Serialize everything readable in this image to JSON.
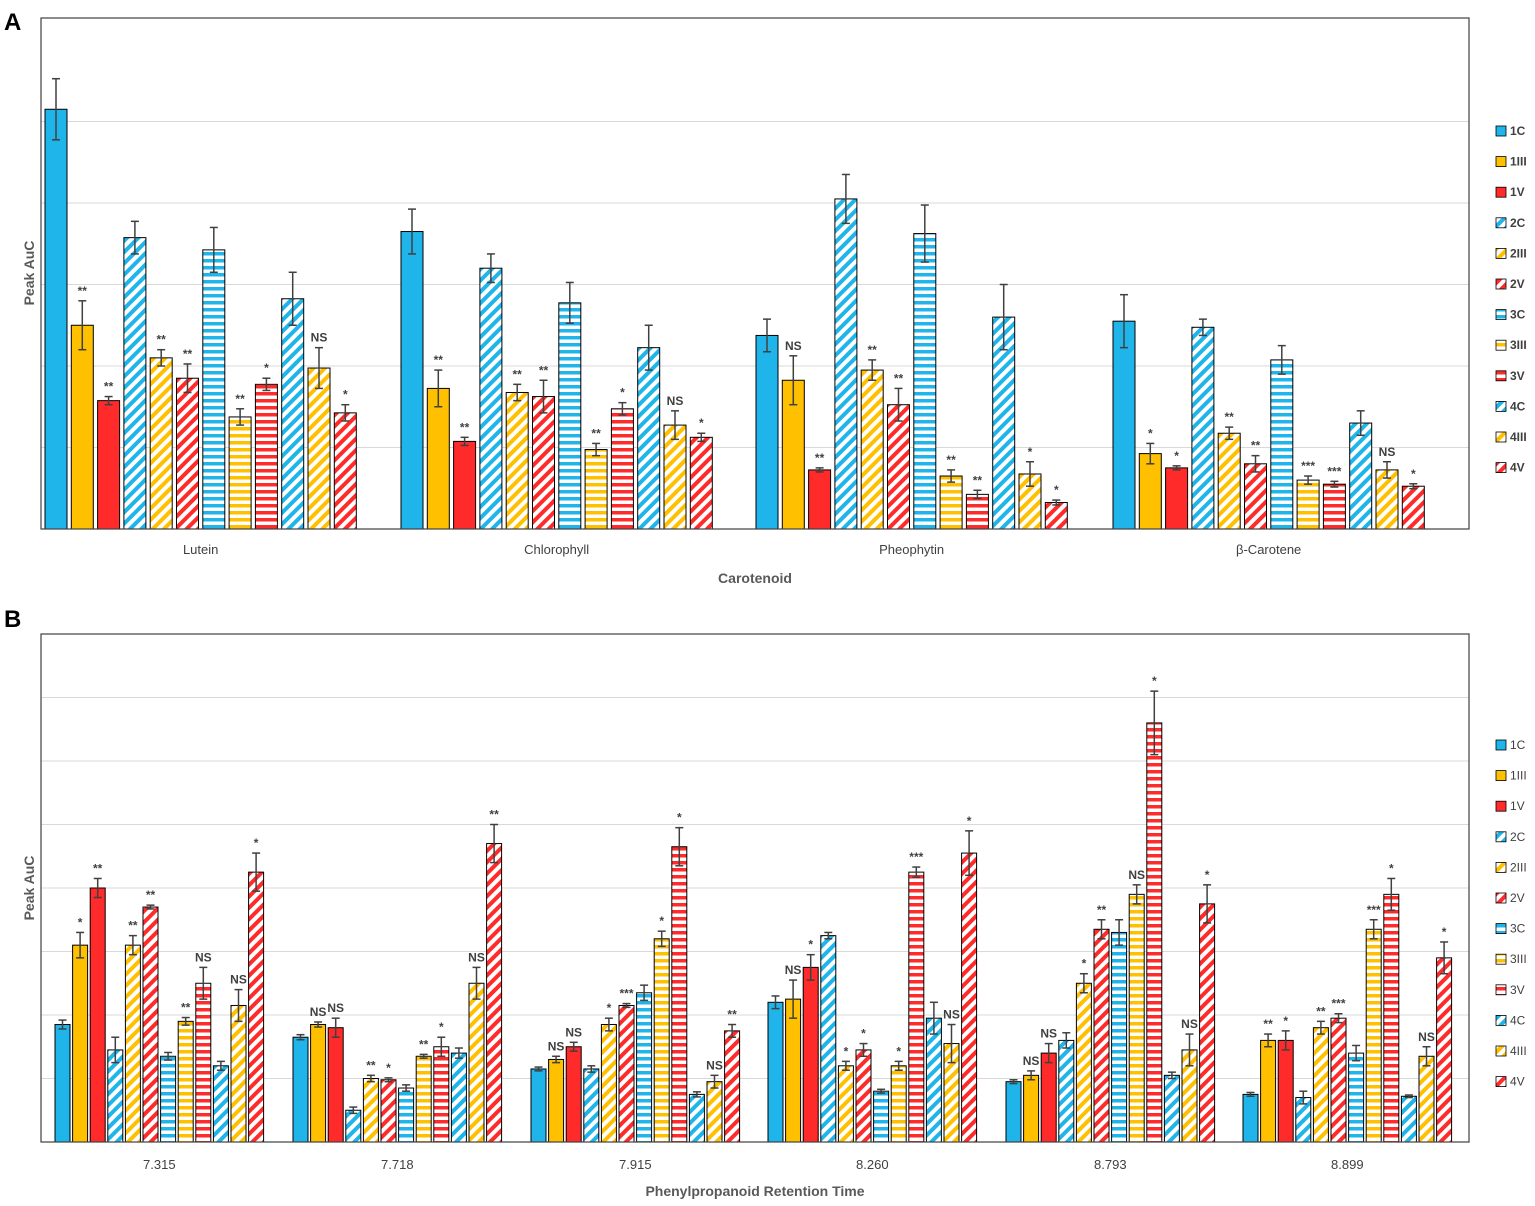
{
  "colors": {
    "blue": "#1fb5ea",
    "orange": "#ffc000",
    "red": "#ff2b2b",
    "grid": "#d9d9d9",
    "frame": "#404040"
  },
  "series_style": [
    {
      "name": "1C",
      "color": "blue",
      "pattern": "solid"
    },
    {
      "name": "1III",
      "color": "orange",
      "pattern": "solid"
    },
    {
      "name": "1V",
      "color": "red",
      "pattern": "solid"
    },
    {
      "name": "2C",
      "color": "blue",
      "pattern": "diag"
    },
    {
      "name": "2III",
      "color": "orange",
      "pattern": "diag"
    },
    {
      "name": "2V",
      "color": "red",
      "pattern": "diag"
    },
    {
      "name": "3C",
      "color": "blue",
      "pattern": "horiz"
    },
    {
      "name": "3III",
      "color": "orange",
      "pattern": "horiz"
    },
    {
      "name": "3V",
      "color": "red",
      "pattern": "horiz"
    },
    {
      "name": "4C",
      "color": "blue",
      "pattern": "diag"
    },
    {
      "name": "4III",
      "color": "orange",
      "pattern": "diag"
    },
    {
      "name": "4V",
      "color": "red",
      "pattern": "diag"
    }
  ],
  "chart_data": [
    {
      "panel": "A",
      "type": "bar",
      "xlabel": "Carotenoid",
      "ylabel": "Peak AuC",
      "ylim": [
        0,
        12
      ],
      "gridlines": [
        2,
        4,
        6,
        8,
        10
      ],
      "categories": [
        "Lutein",
        "Chlorophyll",
        "Pheophytin",
        "β-Carotene"
      ],
      "legend": [
        "1C",
        "1III",
        "1V",
        "2C",
        "2III",
        "2V",
        "3C",
        "3III",
        "3V",
        "4C",
        "4III",
        "4V"
      ],
      "series": [
        {
          "name": "1C",
          "values": [
            10.3,
            7.3,
            4.75,
            5.1
          ],
          "errors": [
            0.75,
            0.55,
            0.4,
            0.65
          ],
          "sig": [
            "",
            "",
            "",
            ""
          ]
        },
        {
          "name": "1III",
          "values": [
            5.0,
            3.45,
            3.65,
            1.85
          ],
          "errors": [
            0.6,
            0.45,
            0.6,
            0.25
          ],
          "sig": [
            "**",
            "**",
            "NS",
            "*"
          ]
        },
        {
          "name": "1V",
          "values": [
            3.15,
            2.15,
            1.45,
            1.5
          ],
          "errors": [
            0.1,
            0.1,
            0.05,
            0.05
          ],
          "sig": [
            "**",
            "**",
            "**",
            "*"
          ]
        },
        {
          "name": "2C",
          "values": [
            7.15,
            6.4,
            8.1,
            4.95
          ],
          "errors": [
            0.4,
            0.35,
            0.6,
            0.2
          ],
          "sig": [
            "",
            "",
            "",
            ""
          ]
        },
        {
          "name": "2III",
          "values": [
            4.2,
            3.35,
            3.9,
            2.35
          ],
          "errors": [
            0.2,
            0.2,
            0.25,
            0.15
          ],
          "sig": [
            "**",
            "**",
            "**",
            "**"
          ]
        },
        {
          "name": "2V",
          "values": [
            3.7,
            3.25,
            3.05,
            1.6
          ],
          "errors": [
            0.35,
            0.4,
            0.4,
            0.2
          ],
          "sig": [
            "**",
            "**",
            "**",
            "**"
          ]
        },
        {
          "name": "3C",
          "values": [
            6.85,
            5.55,
            7.25,
            4.15
          ],
          "errors": [
            0.55,
            0.5,
            0.7,
            0.35
          ],
          "sig": [
            "",
            "",
            "",
            ""
          ]
        },
        {
          "name": "3III",
          "values": [
            2.75,
            1.95,
            1.3,
            1.2
          ],
          "errors": [
            0.2,
            0.15,
            0.15,
            0.1
          ],
          "sig": [
            "**",
            "**",
            "**",
            "***"
          ]
        },
        {
          "name": "3V",
          "values": [
            3.55,
            2.95,
            0.85,
            1.1
          ],
          "errors": [
            0.15,
            0.15,
            0.1,
            0.07
          ],
          "sig": [
            "*",
            "*",
            "**",
            "***"
          ]
        },
        {
          "name": "4C",
          "values": [
            5.65,
            4.45,
            5.2,
            2.6
          ],
          "errors": [
            0.65,
            0.55,
            0.8,
            0.3
          ],
          "sig": [
            "",
            "",
            "",
            ""
          ]
        },
        {
          "name": "4III",
          "values": [
            3.95,
            2.55,
            1.35,
            1.45
          ],
          "errors": [
            0.5,
            0.35,
            0.3,
            0.2
          ],
          "sig": [
            "NS",
            "NS",
            "*",
            "NS"
          ]
        },
        {
          "name": "4V",
          "values": [
            2.85,
            2.25,
            0.65,
            1.05
          ],
          "errors": [
            0.2,
            0.1,
            0.06,
            0.06
          ],
          "sig": [
            "*",
            "*",
            "*",
            "*"
          ]
        }
      ]
    },
    {
      "panel": "B",
      "type": "bar",
      "xlabel": "Phenylpropanoid Retention Time",
      "ylabel": "Peak AuC",
      "ylim": [
        0,
        8
      ],
      "gridlines": [
        1,
        2,
        3,
        4,
        5,
        6,
        7
      ],
      "categories": [
        "7.315",
        "7.718",
        "7.915",
        "8.260",
        "8.793",
        "8.899"
      ],
      "legend": [
        "1C",
        "1III",
        "1V",
        "2C",
        "2III",
        "2V",
        "3C",
        "3III",
        "3V",
        "4C",
        "4III",
        "4V"
      ],
      "series": [
        {
          "name": "1C",
          "values": [
            1.85,
            1.65,
            1.15,
            2.2,
            0.95,
            0.75
          ],
          "errors": [
            0.07,
            0.04,
            0.03,
            0.1,
            0.03,
            0.03
          ],
          "sig": [
            "",
            "",
            "",
            "",
            "",
            ""
          ]
        },
        {
          "name": "1III",
          "values": [
            3.1,
            1.85,
            1.3,
            2.25,
            1.05,
            1.6
          ],
          "errors": [
            0.2,
            0.04,
            0.05,
            0.3,
            0.07,
            0.1
          ],
          "sig": [
            "*",
            "NS",
            "NS",
            "NS",
            "NS",
            "**"
          ]
        },
        {
          "name": "1V",
          "values": [
            4.0,
            1.8,
            1.5,
            2.75,
            1.4,
            1.6
          ],
          "errors": [
            0.15,
            0.15,
            0.07,
            0.2,
            0.15,
            0.15
          ],
          "sig": [
            "**",
            "NS",
            "NS",
            "*",
            "NS",
            "*"
          ]
        },
        {
          "name": "2C",
          "values": [
            1.45,
            0.5,
            1.15,
            3.25,
            1.6,
            0.7
          ],
          "errors": [
            0.2,
            0.05,
            0.05,
            0.05,
            0.12,
            0.1
          ],
          "sig": [
            "",
            "",
            "",
            "",
            "",
            ""
          ]
        },
        {
          "name": "2III",
          "values": [
            3.1,
            1.0,
            1.85,
            1.2,
            2.5,
            1.8
          ],
          "errors": [
            0.15,
            0.05,
            0.1,
            0.07,
            0.15,
            0.1
          ],
          "sig": [
            "**",
            "**",
            "*",
            "*",
            "*",
            "**"
          ]
        },
        {
          "name": "2V",
          "values": [
            3.7,
            0.98,
            2.15,
            1.45,
            3.35,
            1.95
          ],
          "errors": [
            0.03,
            0.03,
            0.03,
            0.1,
            0.15,
            0.07
          ],
          "sig": [
            "**",
            "*",
            "***",
            "*",
            "**",
            "***"
          ]
        },
        {
          "name": "3C",
          "values": [
            1.35,
            0.85,
            2.35,
            0.8,
            3.3,
            1.4
          ],
          "errors": [
            0.06,
            0.05,
            0.12,
            0.03,
            0.2,
            0.12
          ],
          "sig": [
            "",
            "",
            "",
            "",
            "",
            ""
          ]
        },
        {
          "name": "3III",
          "values": [
            1.9,
            1.35,
            3.2,
            1.2,
            3.9,
            3.35
          ],
          "errors": [
            0.06,
            0.03,
            0.12,
            0.07,
            0.15,
            0.15
          ],
          "sig": [
            "**",
            "**",
            "*",
            "*",
            "NS",
            "***"
          ]
        },
        {
          "name": "3V",
          "values": [
            2.5,
            1.5,
            4.65,
            4.25,
            6.6,
            3.9
          ],
          "errors": [
            0.25,
            0.15,
            0.3,
            0.08,
            0.5,
            0.25
          ],
          "sig": [
            "NS",
            "*",
            "*",
            "***",
            "*",
            "*"
          ]
        },
        {
          "name": "4C",
          "values": [
            1.2,
            1.4,
            0.75,
            1.95,
            1.05,
            0.72
          ],
          "errors": [
            0.07,
            0.08,
            0.04,
            0.25,
            0.05,
            0.02
          ],
          "sig": [
            "",
            "",
            "",
            "",
            "",
            ""
          ]
        },
        {
          "name": "4III",
          "values": [
            2.15,
            2.5,
            0.95,
            1.55,
            1.45,
            1.35
          ],
          "errors": [
            0.25,
            0.25,
            0.1,
            0.3,
            0.25,
            0.15
          ],
          "sig": [
            "NS",
            "NS",
            "NS",
            "NS",
            "NS",
            "NS"
          ]
        },
        {
          "name": "4V",
          "values": [
            4.25,
            4.7,
            1.75,
            4.55,
            3.75,
            2.9
          ],
          "errors": [
            0.3,
            0.3,
            0.1,
            0.35,
            0.3,
            0.25
          ],
          "sig": [
            "*",
            "**",
            "**",
            "*",
            "*",
            "*"
          ]
        }
      ]
    }
  ]
}
